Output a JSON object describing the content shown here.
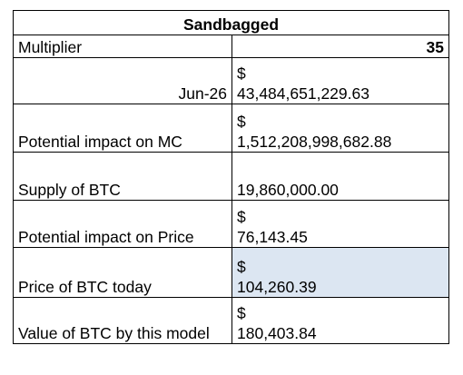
{
  "title": "Sandbagged",
  "rows": [
    {
      "label": "Multiplier",
      "value": "35"
    },
    {
      "label": "Jun-26",
      "currency": "$",
      "value": "43,484,651,229.63"
    },
    {
      "label": "Potential impact on MC",
      "currency": "$",
      "value": "1,512,208,998,682.88"
    },
    {
      "label": "Supply of BTC",
      "value": "19,860,000.00"
    },
    {
      "label": "Potential impact on Price",
      "currency": "$",
      "value": "76,143.45"
    },
    {
      "label": "Price of BTC today",
      "currency": "$",
      "value": "104,260.39"
    },
    {
      "label": "Value of BTC by this model",
      "currency": "$",
      "value": "180,403.84"
    }
  ],
  "colors": {
    "highlight": "#dce6f2",
    "border": "#000000"
  }
}
